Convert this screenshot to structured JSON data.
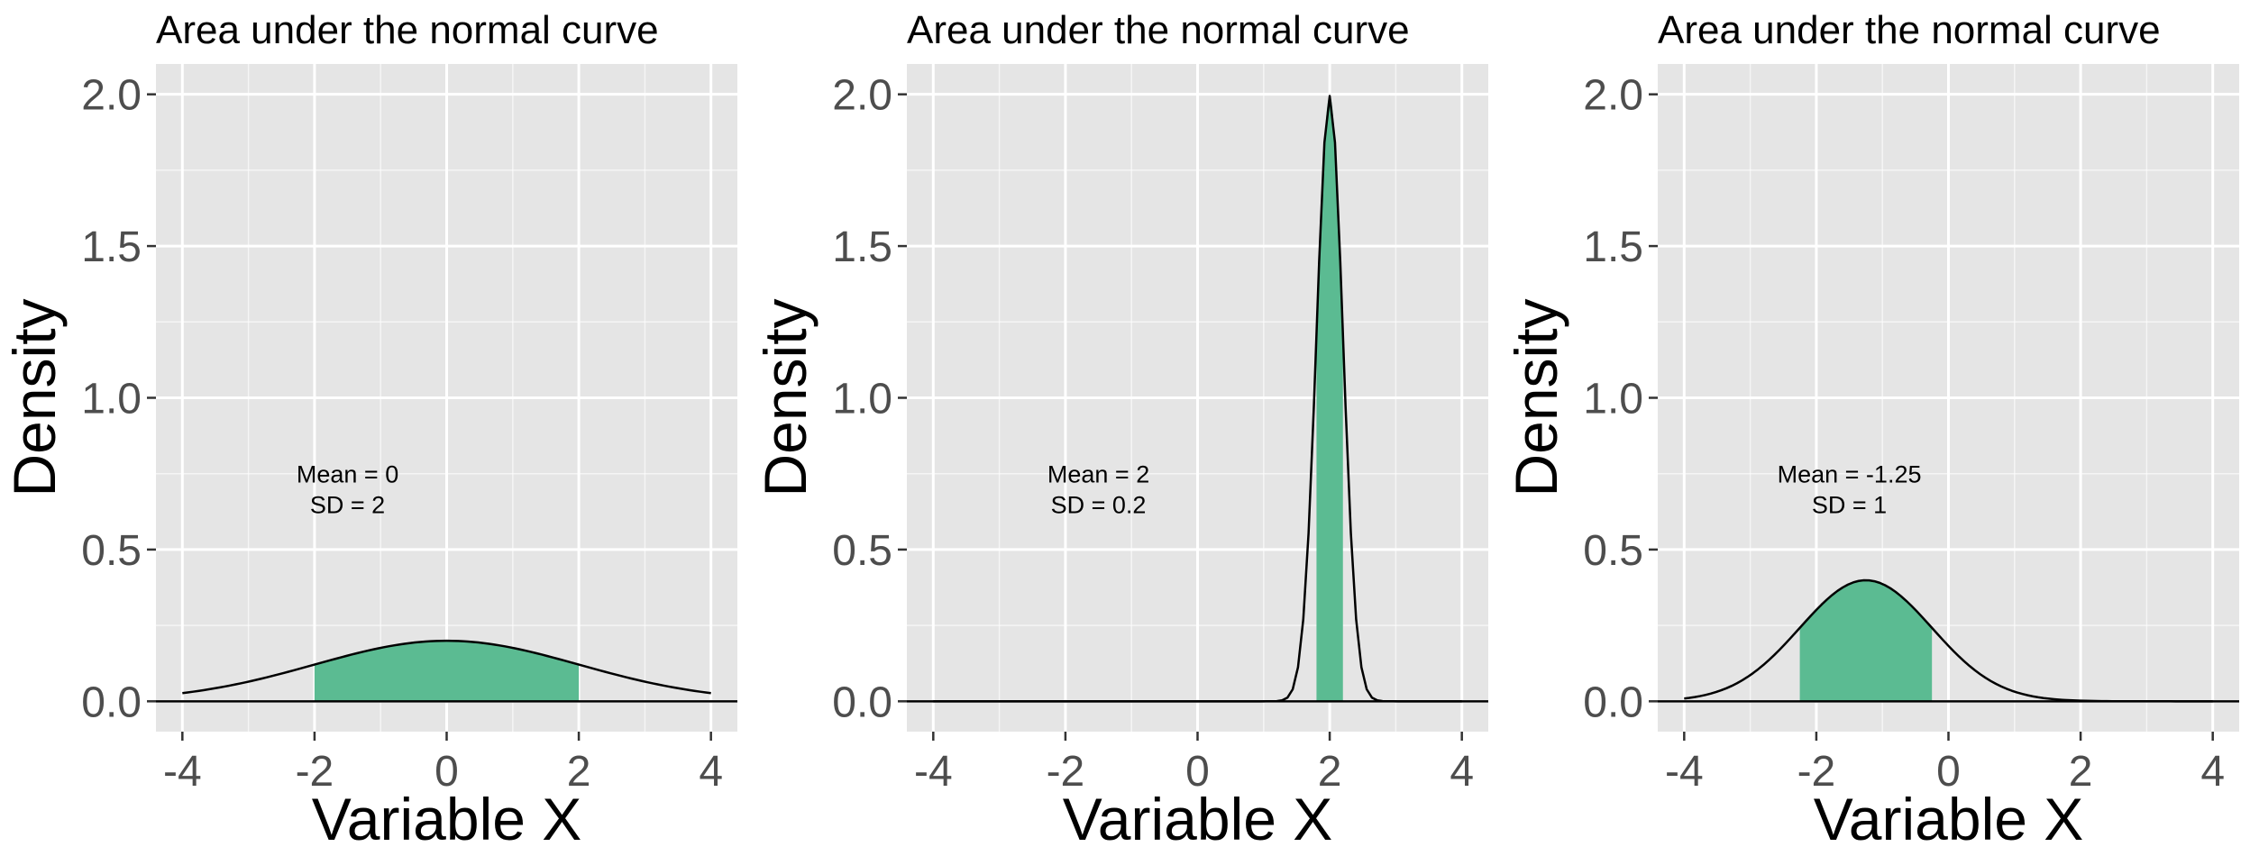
{
  "chart_data": [
    {
      "type": "area",
      "title": "Area under the normal curve",
      "xlabel": "Variable X",
      "ylabel": "Density",
      "xlim": [
        -4,
        4
      ],
      "ylim": [
        0,
        2
      ],
      "xticks": [
        -4,
        -2,
        0,
        2,
        4
      ],
      "yticks": [
        0.0,
        0.5,
        1.0,
        1.5,
        2.0
      ],
      "xtick_labels": [
        "-4",
        "-2",
        "0",
        "2",
        "4"
      ],
      "ytick_labels": [
        "0.0",
        "0.5",
        "1.0",
        "1.5",
        "2.0"
      ],
      "grid": true,
      "distribution": {
        "mean": 0,
        "sd": 2
      },
      "shaded_range": [
        -2,
        2
      ],
      "annotation": {
        "x": -1.5,
        "y": 0.7,
        "lines": [
          "Mean = 0",
          "SD = 2"
        ]
      }
    },
    {
      "type": "area",
      "title": "Area under the normal curve",
      "xlabel": "Variable X",
      "ylabel": "Density",
      "xlim": [
        -4,
        4
      ],
      "ylim": [
        0,
        2
      ],
      "xticks": [
        -4,
        -2,
        0,
        2,
        4
      ],
      "yticks": [
        0.0,
        0.5,
        1.0,
        1.5,
        2.0
      ],
      "xtick_labels": [
        "-4",
        "-2",
        "0",
        "2",
        "4"
      ],
      "ytick_labels": [
        "0.0",
        "0.5",
        "1.0",
        "1.5",
        "2.0"
      ],
      "grid": true,
      "distribution": {
        "mean": 2,
        "sd": 0.2
      },
      "shaded_range": [
        1.8,
        2.2
      ],
      "annotation": {
        "x": -1.5,
        "y": 0.7,
        "lines": [
          "Mean = 2",
          "SD = 0.2"
        ]
      }
    },
    {
      "type": "area",
      "title": "Area under the normal curve",
      "xlabel": "Variable X",
      "ylabel": "Density",
      "xlim": [
        -4,
        4
      ],
      "ylim": [
        0,
        2
      ],
      "xticks": [
        -4,
        -2,
        0,
        2,
        4
      ],
      "yticks": [
        0.0,
        0.5,
        1.0,
        1.5,
        2.0
      ],
      "xtick_labels": [
        "-4",
        "-2",
        "0",
        "2",
        "4"
      ],
      "ytick_labels": [
        "0.0",
        "0.5",
        "1.0",
        "1.5",
        "2.0"
      ],
      "grid": true,
      "distribution": {
        "mean": -1.25,
        "sd": 1
      },
      "shaded_range": [
        -2.25,
        -0.25
      ],
      "annotation": {
        "x": -1.5,
        "y": 0.7,
        "lines": [
          "Mean = -1.25",
          "SD = 1"
        ]
      }
    }
  ],
  "colors": {
    "panel_background": "#e5e5e5",
    "grid_line": "#ffffff",
    "shade_fill": "#5bbb92",
    "curve": "#000000",
    "tick_label": "#4d4d4d",
    "tick_mark": "#333333"
  }
}
